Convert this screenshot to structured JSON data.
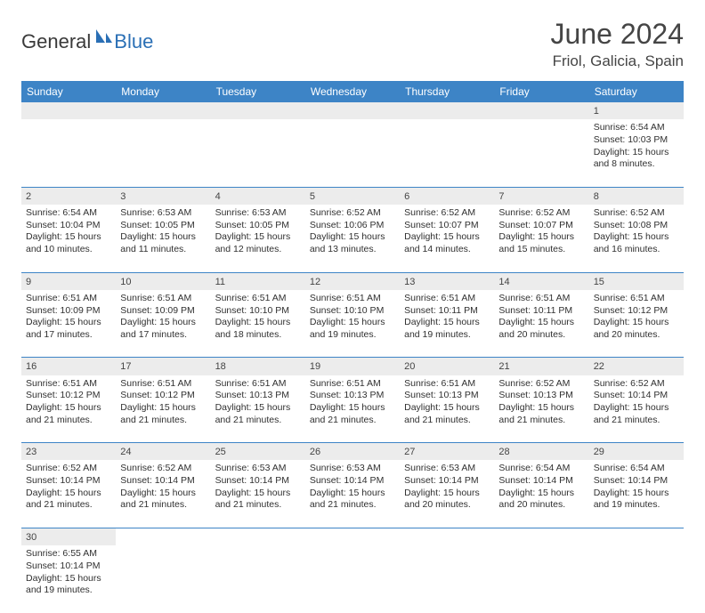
{
  "brand": {
    "part1": "General",
    "part2": "Blue",
    "logo_color": "#2a6fb5"
  },
  "header": {
    "month_title": "June 2024",
    "location": "Friol, Galicia, Spain"
  },
  "colors": {
    "header_bg": "#3d84c6",
    "header_fg": "#ffffff",
    "daynum_bg": "#ececec",
    "rule": "#3d84c6",
    "text": "#303030"
  },
  "weekdays": [
    "Sunday",
    "Monday",
    "Tuesday",
    "Wednesday",
    "Thursday",
    "Friday",
    "Saturday"
  ],
  "weeks": [
    [
      null,
      null,
      null,
      null,
      null,
      null,
      {
        "n": "1",
        "sr": "Sunrise: 6:54 AM",
        "ss": "Sunset: 10:03 PM",
        "d1": "Daylight: 15 hours",
        "d2": "and 8 minutes."
      }
    ],
    [
      {
        "n": "2",
        "sr": "Sunrise: 6:54 AM",
        "ss": "Sunset: 10:04 PM",
        "d1": "Daylight: 15 hours",
        "d2": "and 10 minutes."
      },
      {
        "n": "3",
        "sr": "Sunrise: 6:53 AM",
        "ss": "Sunset: 10:05 PM",
        "d1": "Daylight: 15 hours",
        "d2": "and 11 minutes."
      },
      {
        "n": "4",
        "sr": "Sunrise: 6:53 AM",
        "ss": "Sunset: 10:05 PM",
        "d1": "Daylight: 15 hours",
        "d2": "and 12 minutes."
      },
      {
        "n": "5",
        "sr": "Sunrise: 6:52 AM",
        "ss": "Sunset: 10:06 PM",
        "d1": "Daylight: 15 hours",
        "d2": "and 13 minutes."
      },
      {
        "n": "6",
        "sr": "Sunrise: 6:52 AM",
        "ss": "Sunset: 10:07 PM",
        "d1": "Daylight: 15 hours",
        "d2": "and 14 minutes."
      },
      {
        "n": "7",
        "sr": "Sunrise: 6:52 AM",
        "ss": "Sunset: 10:07 PM",
        "d1": "Daylight: 15 hours",
        "d2": "and 15 minutes."
      },
      {
        "n": "8",
        "sr": "Sunrise: 6:52 AM",
        "ss": "Sunset: 10:08 PM",
        "d1": "Daylight: 15 hours",
        "d2": "and 16 minutes."
      }
    ],
    [
      {
        "n": "9",
        "sr": "Sunrise: 6:51 AM",
        "ss": "Sunset: 10:09 PM",
        "d1": "Daylight: 15 hours",
        "d2": "and 17 minutes."
      },
      {
        "n": "10",
        "sr": "Sunrise: 6:51 AM",
        "ss": "Sunset: 10:09 PM",
        "d1": "Daylight: 15 hours",
        "d2": "and 17 minutes."
      },
      {
        "n": "11",
        "sr": "Sunrise: 6:51 AM",
        "ss": "Sunset: 10:10 PM",
        "d1": "Daylight: 15 hours",
        "d2": "and 18 minutes."
      },
      {
        "n": "12",
        "sr": "Sunrise: 6:51 AM",
        "ss": "Sunset: 10:10 PM",
        "d1": "Daylight: 15 hours",
        "d2": "and 19 minutes."
      },
      {
        "n": "13",
        "sr": "Sunrise: 6:51 AM",
        "ss": "Sunset: 10:11 PM",
        "d1": "Daylight: 15 hours",
        "d2": "and 19 minutes."
      },
      {
        "n": "14",
        "sr": "Sunrise: 6:51 AM",
        "ss": "Sunset: 10:11 PM",
        "d1": "Daylight: 15 hours",
        "d2": "and 20 minutes."
      },
      {
        "n": "15",
        "sr": "Sunrise: 6:51 AM",
        "ss": "Sunset: 10:12 PM",
        "d1": "Daylight: 15 hours",
        "d2": "and 20 minutes."
      }
    ],
    [
      {
        "n": "16",
        "sr": "Sunrise: 6:51 AM",
        "ss": "Sunset: 10:12 PM",
        "d1": "Daylight: 15 hours",
        "d2": "and 21 minutes."
      },
      {
        "n": "17",
        "sr": "Sunrise: 6:51 AM",
        "ss": "Sunset: 10:12 PM",
        "d1": "Daylight: 15 hours",
        "d2": "and 21 minutes."
      },
      {
        "n": "18",
        "sr": "Sunrise: 6:51 AM",
        "ss": "Sunset: 10:13 PM",
        "d1": "Daylight: 15 hours",
        "d2": "and 21 minutes."
      },
      {
        "n": "19",
        "sr": "Sunrise: 6:51 AM",
        "ss": "Sunset: 10:13 PM",
        "d1": "Daylight: 15 hours",
        "d2": "and 21 minutes."
      },
      {
        "n": "20",
        "sr": "Sunrise: 6:51 AM",
        "ss": "Sunset: 10:13 PM",
        "d1": "Daylight: 15 hours",
        "d2": "and 21 minutes."
      },
      {
        "n": "21",
        "sr": "Sunrise: 6:52 AM",
        "ss": "Sunset: 10:13 PM",
        "d1": "Daylight: 15 hours",
        "d2": "and 21 minutes."
      },
      {
        "n": "22",
        "sr": "Sunrise: 6:52 AM",
        "ss": "Sunset: 10:14 PM",
        "d1": "Daylight: 15 hours",
        "d2": "and 21 minutes."
      }
    ],
    [
      {
        "n": "23",
        "sr": "Sunrise: 6:52 AM",
        "ss": "Sunset: 10:14 PM",
        "d1": "Daylight: 15 hours",
        "d2": "and 21 minutes."
      },
      {
        "n": "24",
        "sr": "Sunrise: 6:52 AM",
        "ss": "Sunset: 10:14 PM",
        "d1": "Daylight: 15 hours",
        "d2": "and 21 minutes."
      },
      {
        "n": "25",
        "sr": "Sunrise: 6:53 AM",
        "ss": "Sunset: 10:14 PM",
        "d1": "Daylight: 15 hours",
        "d2": "and 21 minutes."
      },
      {
        "n": "26",
        "sr": "Sunrise: 6:53 AM",
        "ss": "Sunset: 10:14 PM",
        "d1": "Daylight: 15 hours",
        "d2": "and 21 minutes."
      },
      {
        "n": "27",
        "sr": "Sunrise: 6:53 AM",
        "ss": "Sunset: 10:14 PM",
        "d1": "Daylight: 15 hours",
        "d2": "and 20 minutes."
      },
      {
        "n": "28",
        "sr": "Sunrise: 6:54 AM",
        "ss": "Sunset: 10:14 PM",
        "d1": "Daylight: 15 hours",
        "d2": "and 20 minutes."
      },
      {
        "n": "29",
        "sr": "Sunrise: 6:54 AM",
        "ss": "Sunset: 10:14 PM",
        "d1": "Daylight: 15 hours",
        "d2": "and 19 minutes."
      }
    ],
    [
      {
        "n": "30",
        "sr": "Sunrise: 6:55 AM",
        "ss": "Sunset: 10:14 PM",
        "d1": "Daylight: 15 hours",
        "d2": "and 19 minutes."
      },
      null,
      null,
      null,
      null,
      null,
      null
    ]
  ]
}
